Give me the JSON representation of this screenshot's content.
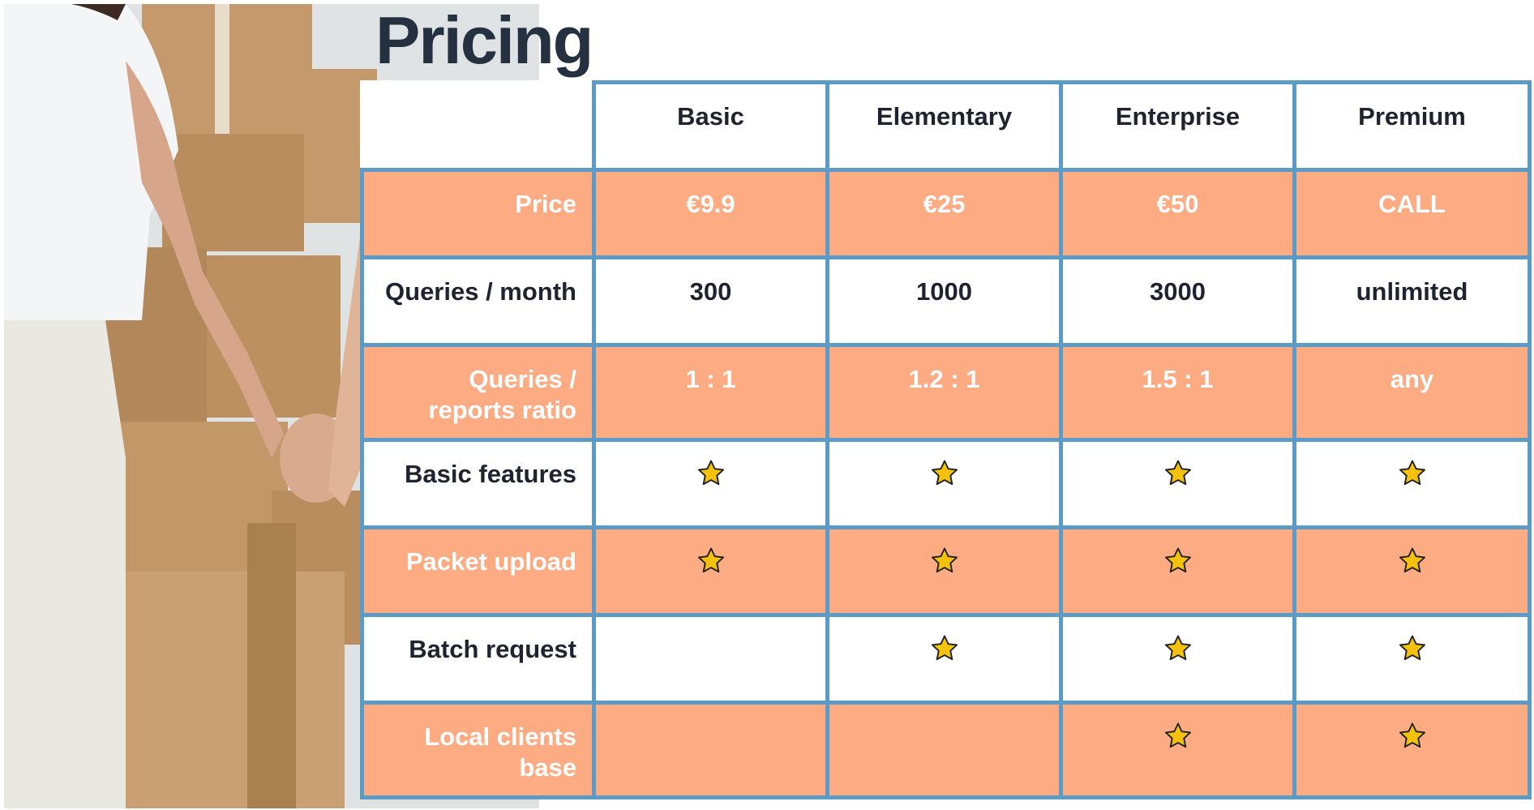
{
  "page": {
    "title": "Pricing"
  },
  "colors": {
    "accent_row": "#fdab82",
    "grid_border": "#5b9bc6",
    "title": "#253041",
    "star_fill": "#f4c20d"
  },
  "table": {
    "plans": [
      "Basic",
      "Elementary",
      "Enterprise",
      "Premium"
    ],
    "rows": [
      {
        "label": "Price",
        "highlight": true,
        "cells": [
          "€9.9",
          "€25",
          "€50",
          "CALL"
        ]
      },
      {
        "label": "Queries / month",
        "highlight": false,
        "cells": [
          "300",
          "1000",
          "3000",
          "unlimited"
        ]
      },
      {
        "label": "Queries / reports ratio",
        "highlight": true,
        "cells": [
          "1 : 1",
          "1.2 : 1",
          "1.5 : 1",
          "any"
        ]
      },
      {
        "label": "Basic features",
        "highlight": false,
        "stars": [
          true,
          true,
          true,
          true
        ]
      },
      {
        "label": "Packet upload",
        "highlight": true,
        "stars": [
          true,
          true,
          true,
          true
        ]
      },
      {
        "label": "Batch request",
        "highlight": false,
        "stars": [
          false,
          true,
          true,
          true
        ]
      },
      {
        "label": "Local clients base",
        "highlight": true,
        "stars": [
          false,
          false,
          true,
          true
        ]
      }
    ],
    "included_icon": "star-icon"
  }
}
